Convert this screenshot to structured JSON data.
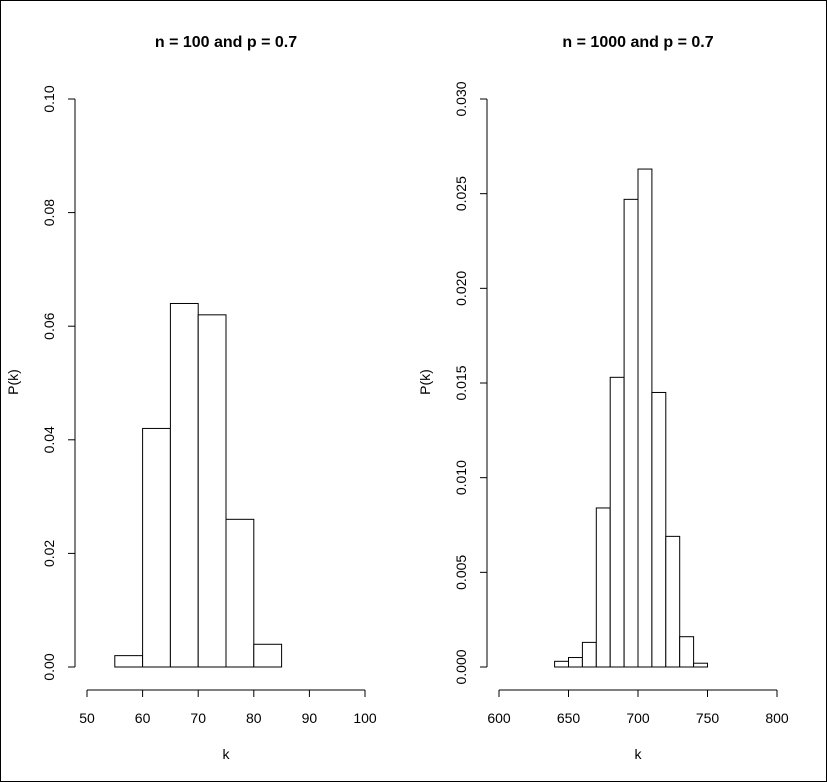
{
  "chart_data": [
    {
      "type": "bar",
      "title": "n = 100 and p = 0.7",
      "xlabel": "k",
      "ylabel": "P(k)",
      "xlim": [
        50,
        100
      ],
      "ylim": [
        0,
        0.1
      ],
      "xticks": [
        50,
        60,
        70,
        80,
        90,
        100
      ],
      "yticks": [
        "0.00",
        "0.02",
        "0.04",
        "0.06",
        "0.08",
        "0.10"
      ],
      "bins": [
        {
          "x0": 55,
          "x1": 60,
          "value": 0.002
        },
        {
          "x0": 60,
          "x1": 65,
          "value": 0.042
        },
        {
          "x0": 65,
          "x1": 70,
          "value": 0.064
        },
        {
          "x0": 70,
          "x1": 75,
          "value": 0.062
        },
        {
          "x0": 75,
          "x1": 80,
          "value": 0.026
        },
        {
          "x0": 80,
          "x1": 85,
          "value": 0.004
        }
      ]
    },
    {
      "type": "bar",
      "title": "n = 1000 and p = 0.7",
      "xlabel": "k",
      "ylabel": "P(k)",
      "xlim": [
        600,
        800
      ],
      "ylim": [
        0,
        0.03
      ],
      "xticks": [
        600,
        650,
        700,
        750,
        800
      ],
      "yticks": [
        "0.000",
        "0.005",
        "0.010",
        "0.015",
        "0.020",
        "0.025",
        "0.030"
      ],
      "bins": [
        {
          "x0": 640,
          "x1": 650,
          "value": 0.0003
        },
        {
          "x0": 650,
          "x1": 660,
          "value": 0.0005
        },
        {
          "x0": 660,
          "x1": 670,
          "value": 0.0013
        },
        {
          "x0": 670,
          "x1": 680,
          "value": 0.0084
        },
        {
          "x0": 680,
          "x1": 690,
          "value": 0.0153
        },
        {
          "x0": 690,
          "x1": 700,
          "value": 0.0247
        },
        {
          "x0": 700,
          "x1": 710,
          "value": 0.0263
        },
        {
          "x0": 710,
          "x1": 720,
          "value": 0.0145
        },
        {
          "x0": 720,
          "x1": 730,
          "value": 0.0069
        },
        {
          "x0": 730,
          "x1": 740,
          "value": 0.0016
        },
        {
          "x0": 740,
          "x1": 750,
          "value": 0.0002
        }
      ]
    }
  ]
}
